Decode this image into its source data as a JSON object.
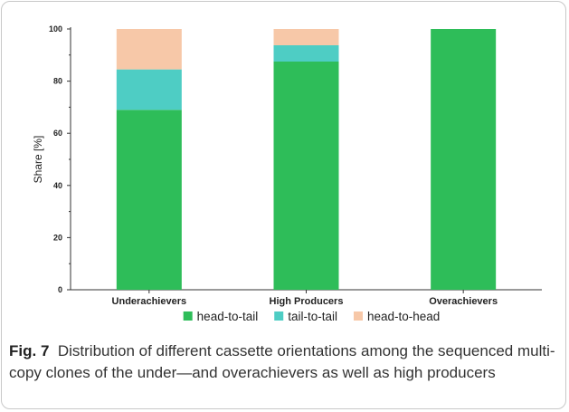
{
  "chart_data": {
    "type": "bar",
    "stacked": true,
    "categories": [
      "Underachievers",
      "High Producers",
      "Overachievers"
    ],
    "series": [
      {
        "name": "head-to-tail",
        "color": "#2ebd59",
        "values": [
          69,
          87.5,
          100
        ]
      },
      {
        "name": "tail-to-tail",
        "color": "#4ecdc4",
        "values": [
          15.5,
          6.25,
          0
        ]
      },
      {
        "name": "head-to-head",
        "color": "#f7c8a8",
        "values": [
          15.5,
          6.25,
          0
        ]
      }
    ],
    "ylabel": "Share [%]",
    "xlabel": "",
    "ylim": [
      0,
      100
    ],
    "yticks": [
      0,
      20,
      40,
      60,
      80,
      100
    ],
    "grid": false,
    "legend_position": "bottom"
  },
  "caption": {
    "label": "Fig. 7",
    "text": "Distribution of different cassette orientations among the sequenced multi-copy clones of the under—and overachievers as well as high producers"
  }
}
